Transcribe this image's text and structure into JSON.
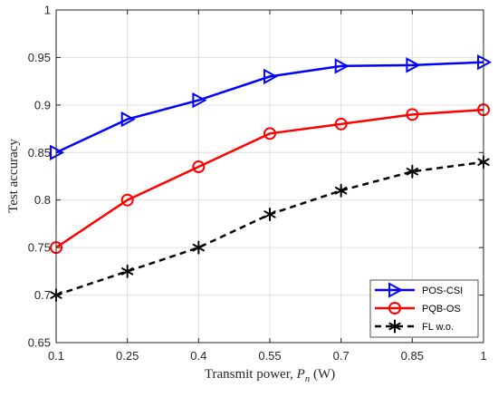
{
  "chart_data": {
    "type": "line",
    "x": [
      0.1,
      0.25,
      0.4,
      0.55,
      0.7,
      0.85,
      1
    ],
    "x_tick_labels": [
      "0.1",
      "0.25",
      "0.4",
      "0.55",
      "0.7",
      "0.85",
      "1"
    ],
    "y_tick_labels": [
      "0.65",
      "0.7",
      "0.75",
      "0.8",
      "0.85",
      "0.9",
      "0.95",
      "1"
    ],
    "xlim": [
      0.1,
      1
    ],
    "ylim": [
      0.65,
      1
    ],
    "xlabel": "Transmit power, ",
    "xlabel_symbol": "P",
    "xlabel_subscript": "n",
    "xlabel_unit": " (W)",
    "ylabel": "Test accuracy",
    "grid": true,
    "legend_position": "bottom-right",
    "series": [
      {
        "name": "POS-CSI",
        "color": "#0000ff",
        "marker": "triangle-right",
        "line": "solid",
        "values": [
          0.85,
          0.885,
          0.905,
          0.93,
          0.941,
          0.942,
          0.945
        ]
      },
      {
        "name": "PQB-OS",
        "color": "#ff0000",
        "marker": "circle",
        "line": "solid",
        "values": [
          0.75,
          0.8,
          0.835,
          0.87,
          0.88,
          0.89,
          0.895
        ]
      },
      {
        "name": "FL w.o.",
        "color": "#000000",
        "marker": "asterisk",
        "line": "dashed",
        "values": [
          0.7,
          0.725,
          0.75,
          0.785,
          0.81,
          0.83,
          0.84
        ]
      }
    ]
  }
}
